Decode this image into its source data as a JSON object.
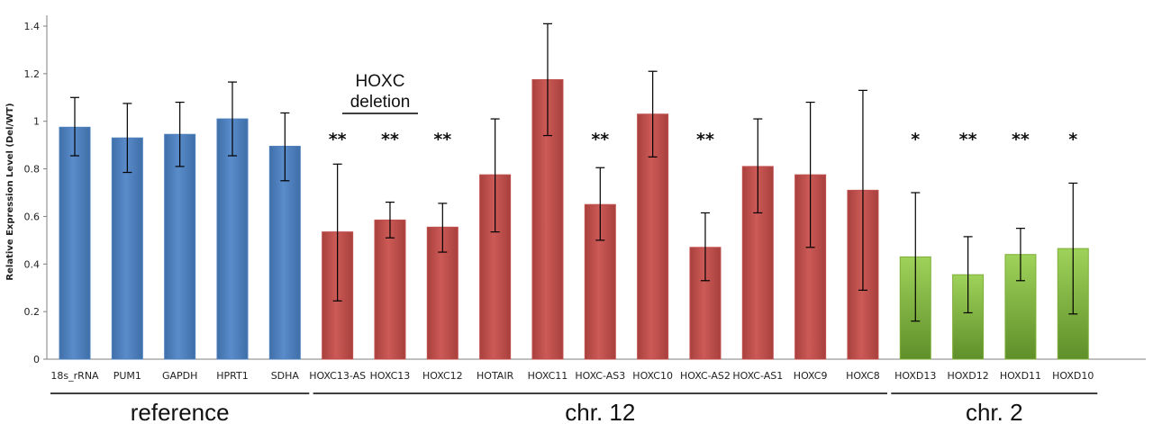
{
  "chart_data": {
    "type": "bar",
    "title": "",
    "xlabel": "",
    "ylabel": "Relative Expression Level (Del/WT)",
    "ylim": [
      0,
      1.4
    ],
    "yticks": [
      "0",
      "0.2",
      "0.4",
      "0.6",
      "0.8",
      "1",
      "1.2",
      "1.4"
    ],
    "grid": false,
    "legend": "none",
    "categories": [
      "18s_rRNA",
      "PUM1",
      "GAPDH",
      "HPRT1",
      "SDHA",
      "HOXC13-AS",
      "HOXC13",
      "HOXC12",
      "HOTAIR",
      "HOXC11",
      "HOXC-AS3",
      "HOXC10",
      "HOXC-AS2",
      "HOXC-AS1",
      "HOXC9",
      "HOXC8",
      "HOXD13",
      "HOXD12",
      "HOXD11",
      "HOXD10"
    ],
    "values": [
      0.975,
      0.93,
      0.945,
      1.01,
      0.895,
      0.535,
      0.585,
      0.555,
      0.775,
      1.175,
      0.65,
      1.03,
      0.47,
      0.81,
      0.775,
      0.71,
      0.43,
      0.355,
      0.44,
      0.465
    ],
    "error_low": [
      0.855,
      0.785,
      0.81,
      0.855,
      0.75,
      0.245,
      0.51,
      0.45,
      0.535,
      0.94,
      0.5,
      0.85,
      0.33,
      0.615,
      0.47,
      0.29,
      0.16,
      0.195,
      0.33,
      0.19
    ],
    "error_high": [
      1.1,
      1.075,
      1.08,
      1.165,
      1.035,
      0.82,
      0.66,
      0.655,
      1.01,
      1.41,
      0.805,
      1.21,
      0.615,
      1.01,
      1.08,
      1.13,
      0.7,
      0.515,
      0.55,
      0.74
    ],
    "significance": [
      "",
      "",
      "",
      "",
      "",
      "**",
      "**",
      "**",
      "",
      "",
      "**",
      "",
      "**",
      "",
      "",
      "",
      "*",
      "**",
      "**",
      "*"
    ],
    "groups": [
      {
        "label": "reference",
        "start": 0,
        "end": 4,
        "color": "#4f81bd"
      },
      {
        "label": "chr. 12",
        "start": 5,
        "end": 15,
        "color": "#c0504d"
      },
      {
        "label": "chr. 2",
        "start": 16,
        "end": 19,
        "color": "#7fae3a"
      }
    ],
    "annotation": {
      "line1": "HOXC",
      "line2": "deletion",
      "start": 5,
      "end": 6
    }
  }
}
